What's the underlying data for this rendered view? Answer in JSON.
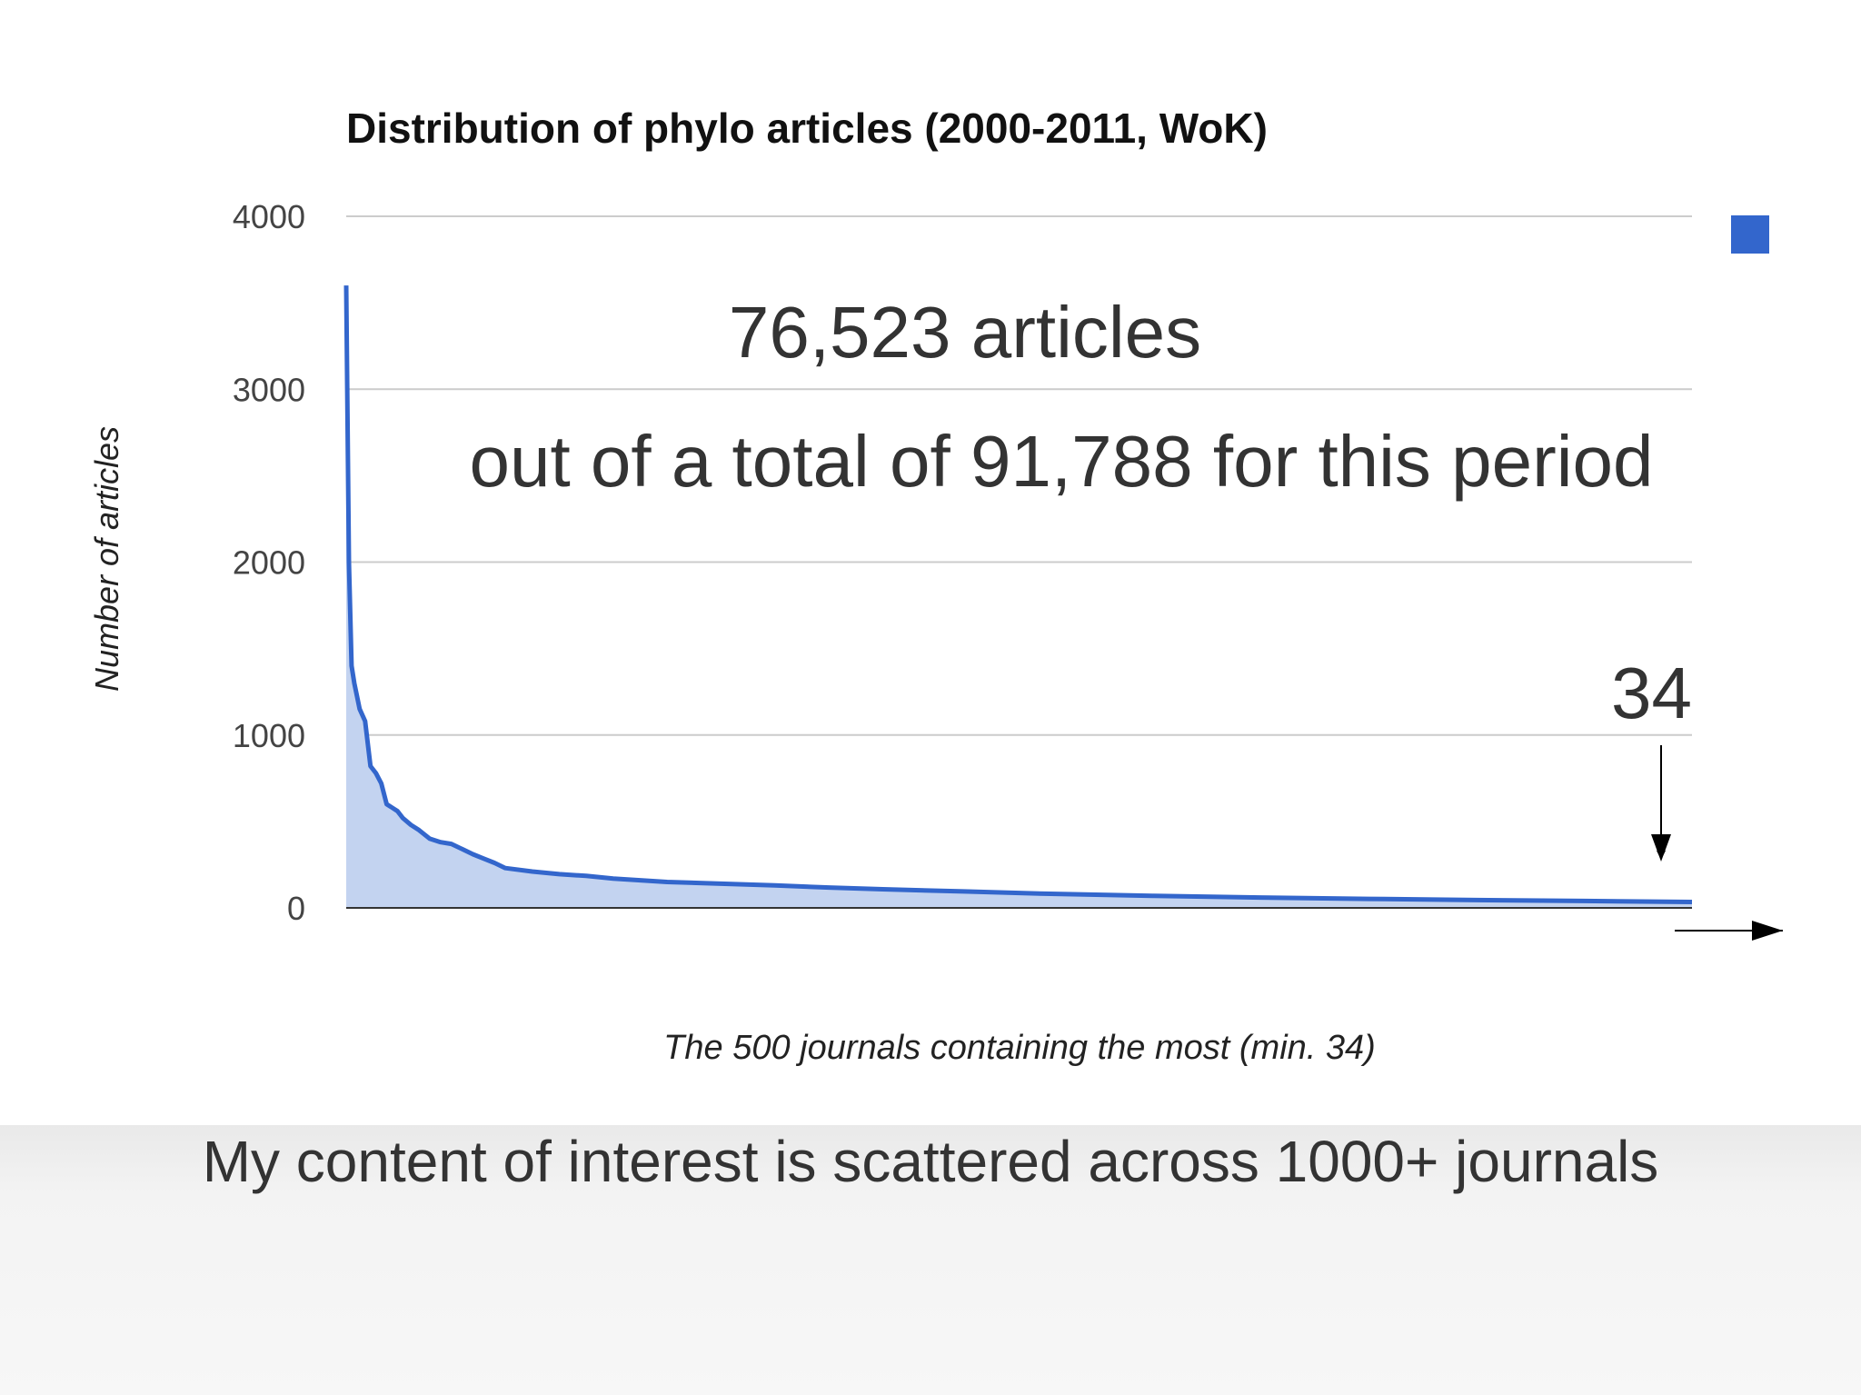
{
  "chart_data": {
    "type": "area",
    "title": "Distribution of phylo articles (2000-2011, WoK)",
    "xlabel": "The 500 journals containing the most (min. 34)",
    "ylabel": "Number of articles",
    "ylim": [
      0,
      4000
    ],
    "y_ticks": [
      0,
      1000,
      2000,
      3000,
      4000
    ],
    "grid": true,
    "legend": "top-right",
    "series": [
      {
        "color": "#3366cc",
        "x": [
          1,
          2,
          3,
          4,
          6,
          8,
          10,
          12,
          14,
          16,
          18,
          20,
          22,
          25,
          28,
          32,
          36,
          40,
          44,
          48,
          52,
          56,
          60,
          70,
          80,
          90,
          100,
          120,
          140,
          160,
          180,
          200,
          230,
          260,
          300,
          340,
          380,
          420,
          460,
          500
        ],
        "values": [
          3600,
          2000,
          1400,
          1300,
          1150,
          1080,
          820,
          780,
          720,
          600,
          580,
          560,
          520,
          480,
          450,
          400,
          380,
          370,
          340,
          310,
          285,
          260,
          230,
          210,
          195,
          185,
          170,
          150,
          140,
          130,
          118,
          108,
          95,
          82,
          70,
          60,
          52,
          45,
          40,
          34
        ]
      }
    ]
  },
  "annotations": {
    "count": "76,523 articles",
    "total": "out of a total of 91,788 for this period",
    "min_value": "34"
  },
  "caption": "My content of interest is scattered across 1000+ journals"
}
